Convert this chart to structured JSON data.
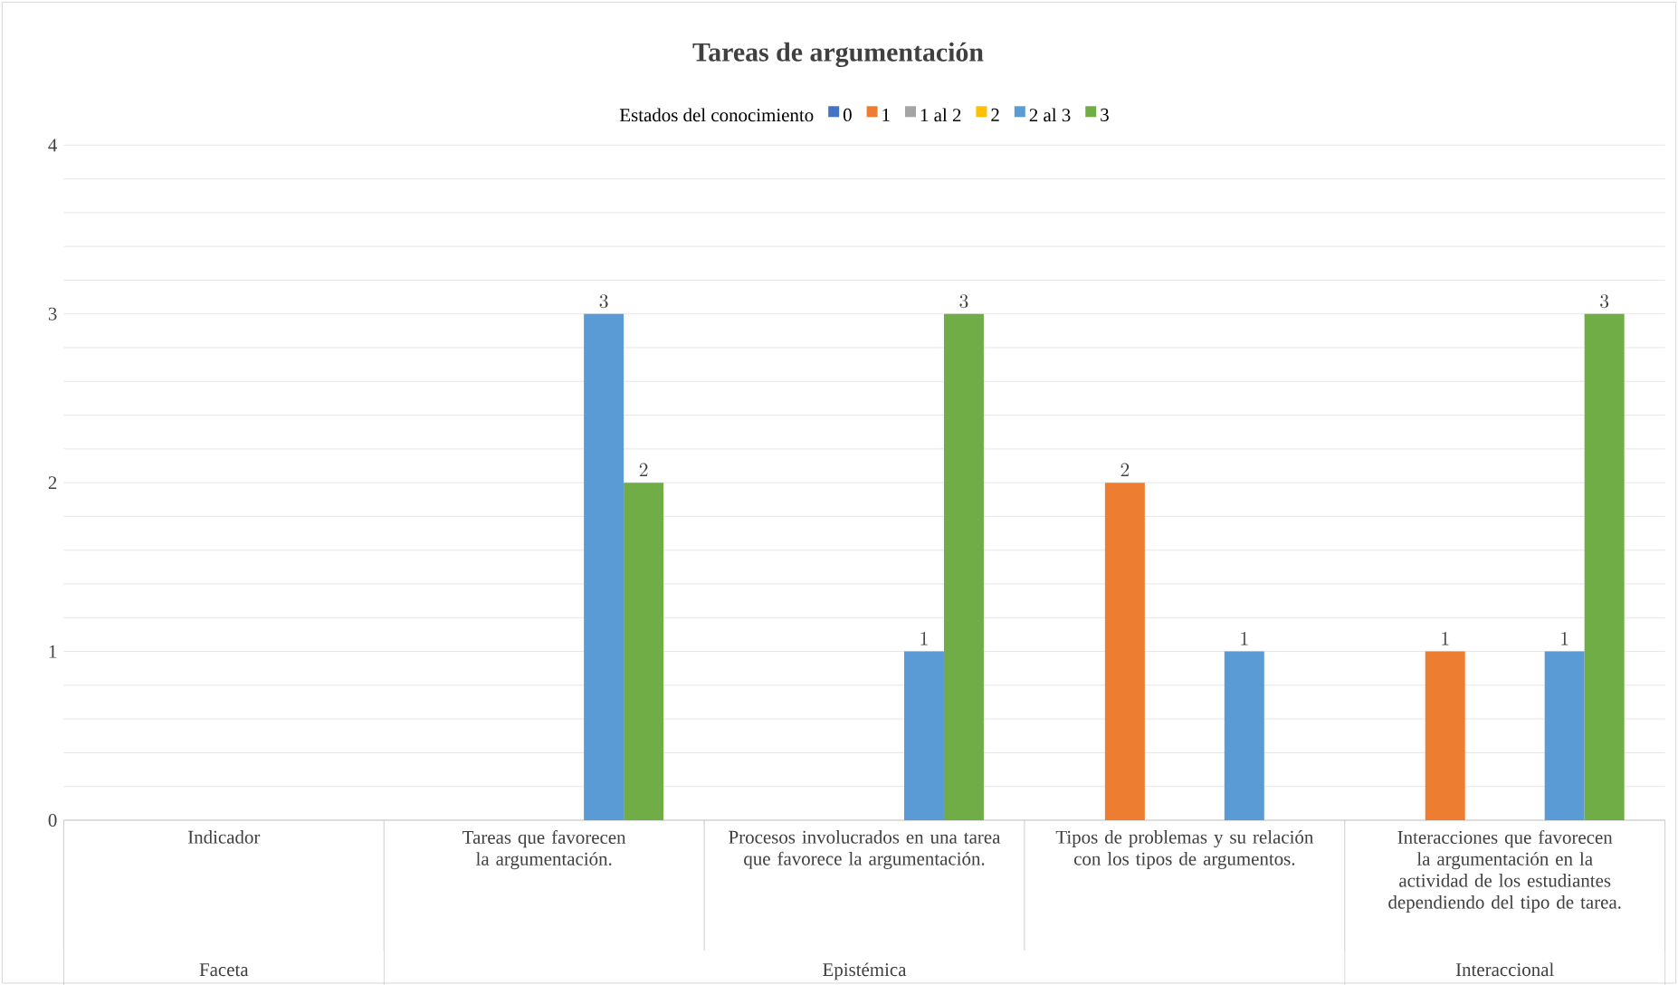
{
  "chart_data": {
    "type": "bar",
    "title": "Tareas de argumentación",
    "legend_title": "Estados del conocimiento",
    "categories": [
      "Indicador",
      "Tareas que favorecen la argumentación.",
      "Procesos involucrados en una tarea que favorece la argumentación.",
      "Tipos de problemas y su relación con los tipos de argumentos.",
      "Interacciones que favorecen la argumentación en la actividad de los estudiantes dependiendo del tipo de tarea."
    ],
    "series": [
      {
        "name": "0",
        "color": "#4472c4",
        "values": [
          null,
          null,
          null,
          null,
          null
        ]
      },
      {
        "name": "1",
        "color": "#ed7d31",
        "values": [
          null,
          null,
          null,
          2,
          1
        ]
      },
      {
        "name": "1 al 2",
        "color": "#a5a5a5",
        "values": [
          null,
          null,
          null,
          null,
          null
        ]
      },
      {
        "name": "2",
        "color": "#ffc000",
        "values": [
          null,
          null,
          null,
          null,
          null
        ]
      },
      {
        "name": "2 al 3",
        "color": "#5b9bd5",
        "values": [
          null,
          3,
          1,
          1,
          1
        ]
      },
      {
        "name": "3",
        "color": "#70ad47",
        "values": [
          null,
          2,
          3,
          null,
          3
        ]
      }
    ],
    "annotations": [
      "Faceta",
      "Epistémica",
      "Interaccional"
    ],
    "ylim": [
      0,
      4
    ],
    "yticks": [
      0,
      {
        "value": 0.2,
        "label": null
      },
      {
        "value": 0.4,
        "label": null
      },
      {
        "value": 0.6,
        "label": null
      },
      {
        "value": 0.8,
        "label": null
      },
      1,
      {
        "value": 1.2,
        "label": null
      },
      {
        "value": 1.4,
        "label": null
      },
      {
        "value": 1.6,
        "label": null
      },
      {
        "value": 1.8,
        "label": null
      },
      2,
      {
        "value": 2.2,
        "label": null
      },
      {
        "value": 2.4,
        "label": null
      },
      {
        "value": 2.6,
        "label": null
      },
      {
        "value": 2.8,
        "label": null
      },
      3,
      {
        "value": 3.2,
        "label": null
      },
      {
        "value": 3.4,
        "label": null
      },
      {
        "value": 3.6,
        "label": null
      },
      {
        "value": 3.8,
        "label": null
      },
      4
    ],
    "grid": "y",
    "legend": "top",
    "data_labels": true
  }
}
